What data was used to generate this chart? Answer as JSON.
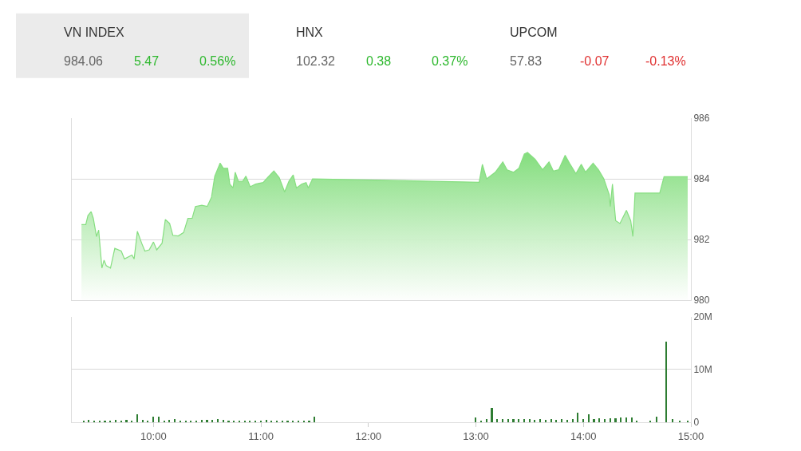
{
  "chart_data": [
    {
      "type": "other",
      "annotations": [
        "VN INDEX",
        "984.06",
        "5.47",
        "0.56%",
        "HNX",
        "102.32",
        "0.38",
        "0.37%",
        "UPCOM",
        "57.83",
        "-0.07",
        "-0.13%"
      ],
      "colors": [
        "#333333",
        "#666666",
        "#2db82d",
        "#2db82d",
        "#333333",
        "#666666",
        "#2db82d",
        "#2db82d",
        "#333333",
        "#666666",
        "#e03030",
        "#e03030"
      ]
    },
    {
      "type": "area",
      "tick_labels": "y",
      "grid": "y",
      "xlim": [
        9.24,
        15.0
      ],
      "xticks": [
        {
          "value": 10,
          "label": null
        },
        {
          "value": 11,
          "label": null
        },
        {
          "value": 12,
          "label": null
        },
        {
          "value": 13,
          "label": null
        },
        {
          "value": 14,
          "label": null
        },
        {
          "value": 15,
          "label": null
        }
      ],
      "ylim": [
        980,
        986
      ],
      "yticks": [
        980,
        982,
        984,
        986
      ],
      "series": [
        {
          "color": "#86de80",
          "x": [
            9.33,
            9.37,
            9.39,
            9.42,
            9.44,
            9.47,
            9.49,
            9.52,
            9.54,
            9.56,
            9.6,
            9.64,
            9.7,
            9.73,
            9.8,
            9.82,
            9.85,
            9.89,
            9.92,
            9.96,
            10.0,
            10.03,
            10.08,
            10.11,
            10.15,
            10.18,
            10.23,
            10.28,
            10.32,
            10.36,
            10.39,
            10.45,
            10.5,
            10.54,
            10.57,
            10.62,
            10.65,
            10.69,
            10.71,
            10.74,
            10.76,
            10.79,
            10.83,
            10.86,
            10.9,
            10.95,
            11.02,
            11.06,
            11.12,
            11.17,
            11.22,
            11.26,
            11.3,
            11.33,
            11.38,
            11.42,
            11.44,
            11.48,
            13.03,
            13.06,
            13.1,
            13.18,
            13.25,
            13.29,
            13.35,
            13.4,
            13.45,
            13.48,
            13.55,
            13.62,
            13.68,
            13.72,
            13.77,
            13.83,
            13.87,
            13.93,
            13.98,
            14.02,
            14.09,
            14.14,
            14.19,
            14.24,
            14.25,
            14.27,
            14.3,
            14.34,
            14.4,
            14.44,
            14.46,
            14.48,
            14.71,
            14.75,
            14.97
          ],
          "values": [
            982.49,
            982.49,
            982.79,
            982.92,
            982.7,
            982.1,
            982.31,
            981.06,
            981.32,
            981.14,
            981.06,
            981.71,
            981.62,
            981.36,
            981.49,
            981.36,
            982.27,
            981.88,
            981.62,
            981.66,
            981.92,
            981.66,
            981.88,
            982.66,
            982.53,
            982.14,
            982.12,
            982.23,
            982.7,
            982.7,
            983.09,
            983.13,
            983.09,
            983.4,
            984.09,
            984.52,
            984.35,
            984.35,
            983.83,
            983.7,
            984.22,
            983.92,
            983.92,
            984.09,
            983.74,
            983.83,
            983.88,
            984.04,
            984.26,
            984.04,
            983.57,
            983.92,
            984.13,
            983.7,
            983.83,
            983.88,
            983.7,
            984.0,
            983.89,
            984.48,
            984.0,
            984.22,
            984.56,
            984.3,
            984.22,
            984.35,
            984.82,
            984.87,
            984.65,
            984.3,
            984.56,
            984.26,
            984.3,
            984.78,
            984.52,
            984.17,
            984.48,
            984.22,
            984.52,
            984.3,
            984.0,
            983.48,
            983.09,
            983.83,
            982.62,
            982.53,
            982.96,
            982.62,
            982.1,
            983.53,
            983.53,
            984.07,
            984.07
          ]
        }
      ]
    },
    {
      "type": "bar",
      "grid": "y",
      "xlim": [
        9.24,
        15.0
      ],
      "xticks": [
        {
          "value": 10,
          "label": "10:00"
        },
        {
          "value": 11,
          "label": "11:00"
        },
        {
          "value": 12,
          "label": "12:00"
        },
        {
          "value": 13,
          "label": "13:00"
        },
        {
          "value": 14,
          "label": "14:00"
        },
        {
          "value": 15,
          "label": "15:00"
        }
      ],
      "ylim": [
        0,
        20
      ],
      "yticks": [
        0,
        {
          "value": 10,
          "label": "10M"
        },
        {
          "value": 20,
          "label": "20M"
        }
      ],
      "series": [
        {
          "color": "#2e7d32",
          "x": [
            9.35,
            9.4,
            9.45,
            9.5,
            9.55,
            9.6,
            9.65,
            9.7,
            9.75,
            9.8,
            9.85,
            9.9,
            9.95,
            10.0,
            10.05,
            10.1,
            10.15,
            10.2,
            10.25,
            10.3,
            10.35,
            10.4,
            10.45,
            10.5,
            10.55,
            10.6,
            10.65,
            10.7,
            10.75,
            10.8,
            10.85,
            10.9,
            10.95,
            11.0,
            11.05,
            11.1,
            11.15,
            11.2,
            11.25,
            11.3,
            11.35,
            11.4,
            11.45,
            11.5,
            13.0,
            13.05,
            13.1,
            13.15,
            13.2,
            13.25,
            13.3,
            13.35,
            13.4,
            13.45,
            13.5,
            13.55,
            13.6,
            13.65,
            13.7,
            13.75,
            13.8,
            13.85,
            13.9,
            13.95,
            14.0,
            14.05,
            14.1,
            14.15,
            14.2,
            14.25,
            14.3,
            14.35,
            14.4,
            14.45,
            14.5,
            14.62,
            14.68,
            14.77,
            14.83,
            14.9,
            14.97
          ],
          "values": [
            0.4,
            0.5,
            0.3,
            0.4,
            0.3,
            0.4,
            0.5,
            0.4,
            0.5,
            0.4,
            1.6,
            0.5,
            0.4,
            1.1,
            1.1,
            0.4,
            0.5,
            0.6,
            0.3,
            0.3,
            0.4,
            0.4,
            0.5,
            0.5,
            0.5,
            0.6,
            0.5,
            0.4,
            0.3,
            0.3,
            0.4,
            0.3,
            0.4,
            0.4,
            0.5,
            0.4,
            0.3,
            0.3,
            0.3,
            0.3,
            0.3,
            0.3,
            0.3,
            1.1,
            0.9,
            0.4,
            0.6,
            2.8,
            0.6,
            0.7,
            0.6,
            0.7,
            0.6,
            0.7,
            0.6,
            0.5,
            0.6,
            0.5,
            0.6,
            0.5,
            0.6,
            0.5,
            0.6,
            1.8,
            0.6,
            1.6,
            0.7,
            0.8,
            0.7,
            0.8,
            0.8,
            0.9,
            0.9,
            1.0,
            0.3,
            0.3,
            1.1,
            15.3,
            0.6,
            0.3,
            0.3
          ]
        }
      ]
    }
  ]
}
